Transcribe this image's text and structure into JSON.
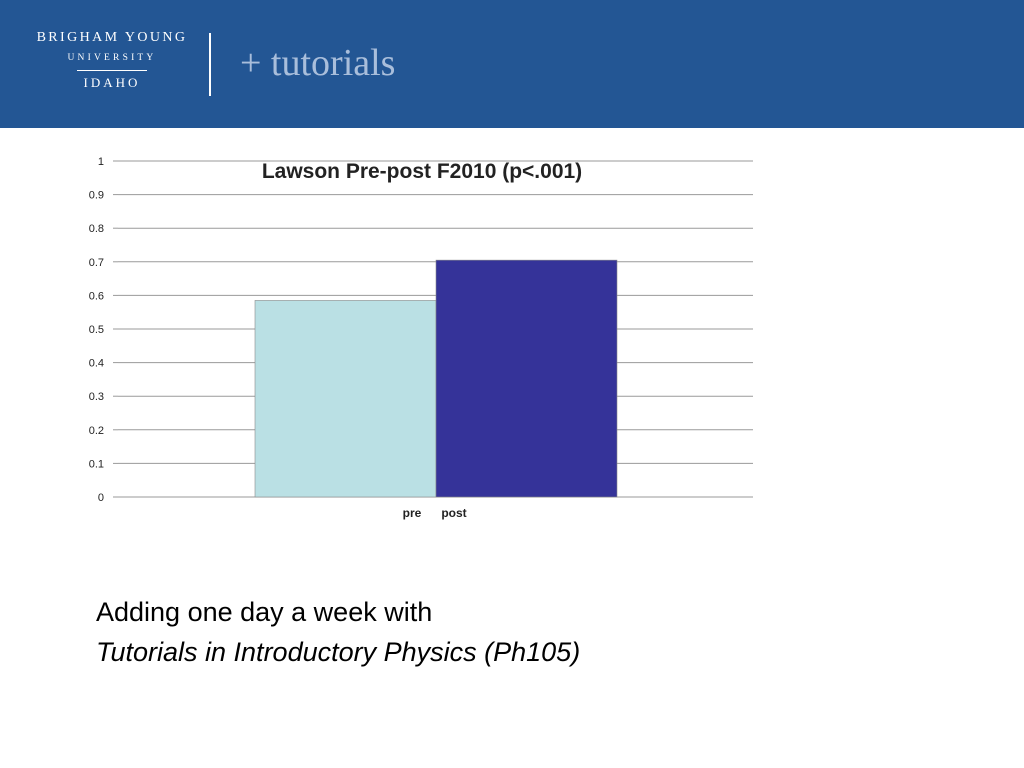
{
  "header": {
    "logo": {
      "line1": "BRIGHAM YOUNG",
      "line2": "UNIVERSITY",
      "line3": "IDAHO"
    },
    "title": "+ tutorials",
    "background_color": "#235694",
    "title_color": "#a9bedb"
  },
  "chart_data": {
    "type": "bar",
    "title": "Lawson Pre-post F2010 (p<.001)",
    "categories": [
      "pre",
      "post"
    ],
    "values": [
      0.585,
      0.705
    ],
    "colors": [
      "#bae0e4",
      "#353399"
    ],
    "ylim": [
      0,
      1
    ],
    "yticks": [
      "0",
      "0.1",
      "0.2",
      "0.3",
      "0.4",
      "0.5",
      "0.6",
      "0.7",
      "0.8",
      "0.9",
      "1"
    ],
    "grid": true,
    "xlabel": "",
    "ylabel": ""
  },
  "caption": {
    "line1": "Adding one day a week with",
    "line2": "Tutorials in Introductory Physics (Ph105)"
  }
}
